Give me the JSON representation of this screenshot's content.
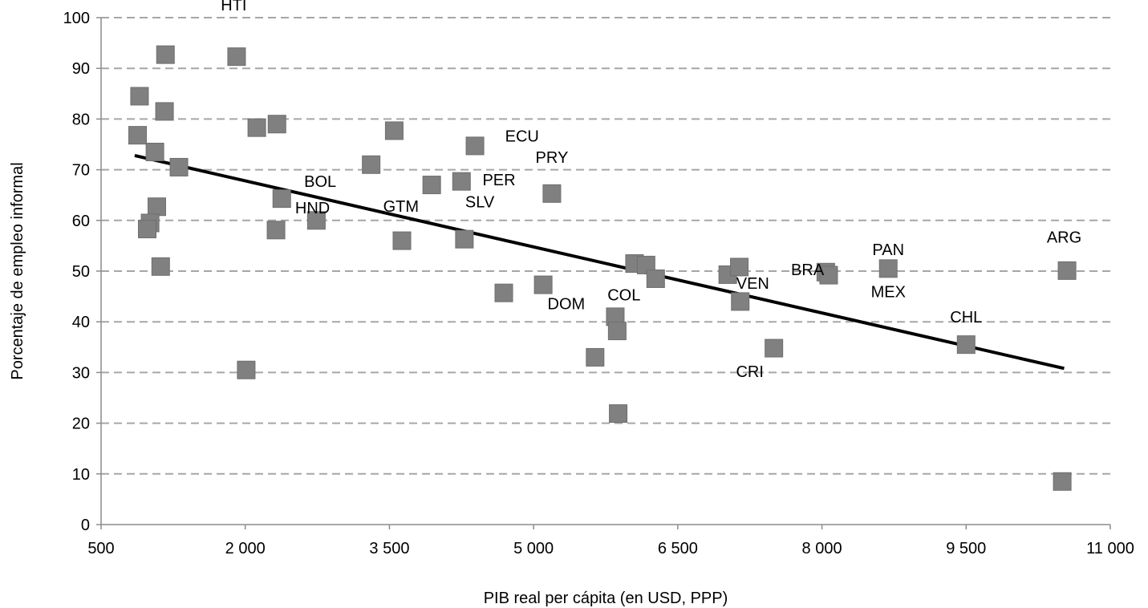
{
  "chart_data": {
    "type": "scatter",
    "title": "",
    "xlabel": "PIB real per cápita (en USD, PPP)",
    "ylabel": "Porcentaje de empleo informal",
    "xlim": [
      500,
      11000
    ],
    "ylim": [
      0,
      100
    ],
    "x_ticks": [
      500,
      2000,
      3500,
      5000,
      6500,
      8000,
      9500,
      11000
    ],
    "x_tick_labels": [
      "500",
      "2 000",
      "3 500",
      "5 000",
      "6 500",
      "8 000",
      "9 500",
      "11 000"
    ],
    "y_ticks": [
      0,
      10,
      20,
      30,
      40,
      50,
      60,
      70,
      80,
      90,
      100
    ],
    "y_tick_labels": [
      "0",
      "10",
      "20",
      "30",
      "40",
      "50",
      "60",
      "70",
      "80",
      "90",
      "100"
    ],
    "grid": "horizontal-dashed",
    "legend": "none",
    "marker_color": "#808080",
    "trendline_color": "#000000",
    "points": [
      {
        "x": 900,
        "y": 84.5
      },
      {
        "x": 880,
        "y": 76.8
      },
      {
        "x": 1170,
        "y": 92.7
      },
      {
        "x": 1160,
        "y": 81.5
      },
      {
        "x": 1060,
        "y": 73.5
      },
      {
        "x": 1310,
        "y": 70.5
      },
      {
        "x": 1080,
        "y": 62.7
      },
      {
        "x": 1010,
        "y": 59.5
      },
      {
        "x": 980,
        "y": 58.3
      },
      {
        "x": 1120,
        "y": 50.9
      },
      {
        "x": 1910,
        "y": 92.3,
        "label": "HTI"
      },
      {
        "x": 2120,
        "y": 78.3
      },
      {
        "x": 2330,
        "y": 79.0
      },
      {
        "x": 2380,
        "y": 64.3,
        "label": "BOL"
      },
      {
        "x": 2320,
        "y": 58.1
      },
      {
        "x": 2740,
        "y": 60.0,
        "label": "HND"
      },
      {
        "x": 2010,
        "y": 30.5
      },
      {
        "x": 3310,
        "y": 71.0
      },
      {
        "x": 3550,
        "y": 77.7
      },
      {
        "x": 3630,
        "y": 56.0,
        "label": "GTM"
      },
      {
        "x": 3940,
        "y": 67.0
      },
      {
        "x": 4250,
        "y": 67.7,
        "label": "PER"
      },
      {
        "x": 4390,
        "y": 74.7,
        "label": "ECU"
      },
      {
        "x": 4280,
        "y": 56.3,
        "label": "SLV"
      },
      {
        "x": 4690,
        "y": 45.7
      },
      {
        "x": 5100,
        "y": 47.3
      },
      {
        "x": 5190,
        "y": 65.3,
        "label": "PRY"
      },
      {
        "x": 5640,
        "y": 33.0
      },
      {
        "x": 5850,
        "y": 41.0,
        "label": "DOM"
      },
      {
        "x": 5870,
        "y": 38.2,
        "label": "COL"
      },
      {
        "x": 5880,
        "y": 21.9
      },
      {
        "x": 6050,
        "y": 51.5
      },
      {
        "x": 6170,
        "y": 51.2
      },
      {
        "x": 6270,
        "y": 48.5
      },
      {
        "x": 7020,
        "y": 49.3
      },
      {
        "x": 7140,
        "y": 50.8
      },
      {
        "x": 7150,
        "y": 44.0,
        "label": "VEN"
      },
      {
        "x": 7500,
        "y": 34.8,
        "label": "CRI"
      },
      {
        "x": 8040,
        "y": 49.8
      },
      {
        "x": 8070,
        "y": 49.2,
        "label": "BRA"
      },
      {
        "x": 8690,
        "y": 50.5,
        "label": "MEX"
      },
      {
        "x": 9500,
        "y": 35.5,
        "label": "CHL"
      },
      {
        "x": 10550,
        "y": 50.1,
        "label": "PAN"
      },
      {
        "x": 10500,
        "y": 8.5,
        "label": "ARG"
      }
    ],
    "labels": [
      {
        "text": "HTI",
        "x": 1880,
        "y": 102.5
      },
      {
        "text": "BOL",
        "x": 2780,
        "y": 67.7
      },
      {
        "text": "HND",
        "x": 2700,
        "y": 62.5
      },
      {
        "text": "GTM",
        "x": 3620,
        "y": 62.8
      },
      {
        "text": "PER",
        "x": 4640,
        "y": 68.0
      },
      {
        "text": "ECU",
        "x": 4880,
        "y": 76.7
      },
      {
        "text": "SLV",
        "x": 4440,
        "y": 63.7
      },
      {
        "text": "PRY",
        "x": 5190,
        "y": 72.5
      },
      {
        "text": "DOM",
        "x": 5340,
        "y": 43.6
      },
      {
        "text": "COL",
        "x": 5940,
        "y": 45.3
      },
      {
        "text": "VEN",
        "x": 7280,
        "y": 47.6
      },
      {
        "text": "CRI",
        "x": 7250,
        "y": 30.2
      },
      {
        "text": "BRA",
        "x": 7850,
        "y": 50.3
      },
      {
        "text": "MEX",
        "x": 8690,
        "y": 46.0
      },
      {
        "text": "PAN",
        "x": 8690,
        "y": 54.3
      },
      {
        "text": "CHL",
        "x": 9500,
        "y": 41.0
      },
      {
        "text": "ARG",
        "x": 10520,
        "y": 56.7
      }
    ],
    "trendline": {
      "x": [
        850,
        10520
      ],
      "y": [
        72.8,
        30.8
      ]
    }
  }
}
